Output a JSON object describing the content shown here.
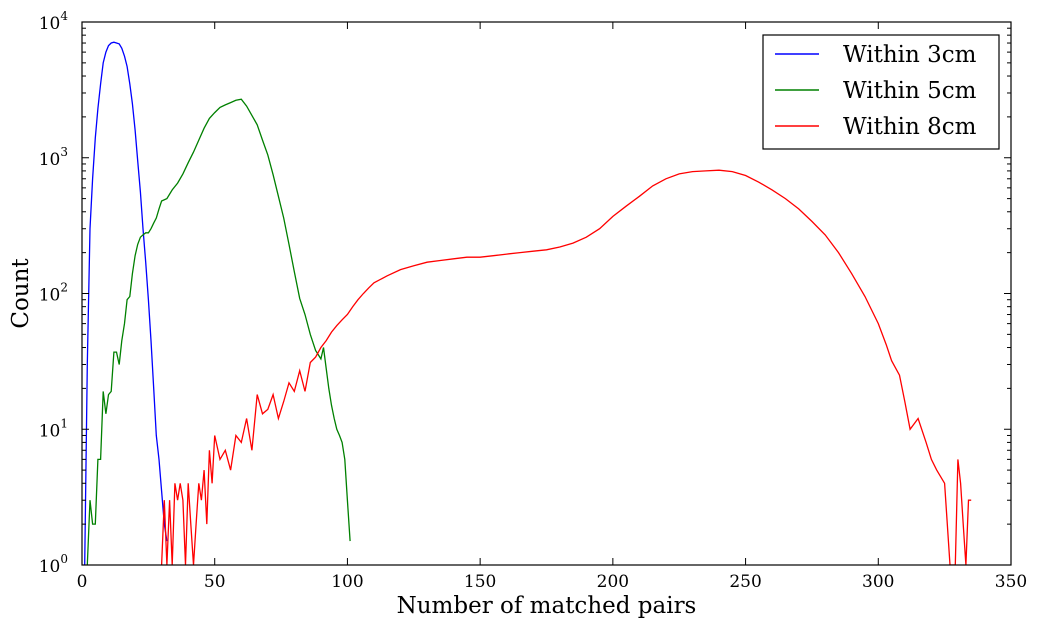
{
  "chart_data": {
    "type": "line",
    "xlabel": "Number of matched pairs",
    "ylabel": "Count",
    "xlim": [
      0,
      350
    ],
    "ylim": [
      1,
      10000
    ],
    "yscale": "log",
    "xticks": [
      0,
      50,
      100,
      150,
      200,
      250,
      300,
      350
    ],
    "yticks": [
      {
        "value": 1,
        "base": "10",
        "exp": "0"
      },
      {
        "value": 10,
        "base": "10",
        "exp": "1"
      },
      {
        "value": 100,
        "base": "10",
        "exp": "2"
      },
      {
        "value": 1000,
        "base": "10",
        "exp": "3"
      },
      {
        "value": 10000,
        "base": "10",
        "exp": "4"
      }
    ],
    "grid": false,
    "legend_position": "top-right",
    "series": [
      {
        "name": "Within 3cm",
        "color": "#0000ff",
        "x": [
          1,
          2,
          3,
          4,
          5,
          6,
          7,
          8,
          9,
          10,
          11,
          12,
          13,
          14,
          15,
          16,
          17,
          18,
          19,
          20,
          21,
          22,
          23,
          24,
          25,
          26,
          27,
          28,
          29,
          30,
          31,
          32
        ],
        "y": [
          1,
          30,
          300,
          700,
          1400,
          2300,
          3500,
          5000,
          6000,
          6700,
          7000,
          7100,
          7000,
          6900,
          6400,
          5600,
          4700,
          3500,
          2500,
          1600,
          950,
          560,
          300,
          170,
          90,
          45,
          20,
          9,
          6,
          3.5,
          2,
          1.5
        ]
      },
      {
        "name": "Within 5cm",
        "color": "#008000",
        "x": [
          2,
          3,
          4,
          5,
          6,
          7,
          8,
          9,
          10,
          11,
          12,
          13,
          14,
          15,
          16,
          17,
          18,
          19,
          20,
          21,
          22,
          23,
          24,
          25,
          26,
          27,
          28,
          29,
          30,
          32,
          34,
          36,
          38,
          40,
          42,
          44,
          46,
          48,
          50,
          52,
          54,
          56,
          58,
          60,
          62,
          64,
          66,
          68,
          70,
          72,
          74,
          76,
          78,
          80,
          82,
          84,
          86,
          88,
          90,
          91,
          92,
          93,
          94,
          95,
          96,
          97,
          98,
          99,
          100,
          101
        ],
        "y": [
          1,
          3,
          2,
          2,
          6,
          6,
          19,
          13,
          18,
          19,
          37,
          37,
          30,
          45,
          60,
          90,
          95,
          140,
          190,
          230,
          260,
          270,
          280,
          280,
          300,
          330,
          360,
          420,
          480,
          500,
          580,
          650,
          760,
          920,
          1100,
          1350,
          1650,
          1950,
          2150,
          2350,
          2450,
          2550,
          2650,
          2700,
          2400,
          2050,
          1750,
          1350,
          1050,
          750,
          520,
          360,
          230,
          145,
          92,
          70,
          50,
          38,
          33,
          40,
          28,
          20,
          15,
          12,
          10,
          9,
          8,
          6,
          3,
          1.5
        ]
      },
      {
        "name": "Within 8cm",
        "color": "#ff0000",
        "x": [
          30,
          31,
          32,
          33,
          34,
          35,
          36,
          37,
          38,
          39,
          40,
          41,
          42,
          43,
          44,
          45,
          46,
          47,
          48,
          49,
          50,
          52,
          54,
          56,
          58,
          60,
          62,
          64,
          66,
          68,
          70,
          72,
          74,
          76,
          78,
          80,
          82,
          84,
          86,
          88,
          90,
          92,
          94,
          96,
          98,
          100,
          102,
          104,
          106,
          108,
          110,
          115,
          120,
          125,
          130,
          135,
          140,
          145,
          150,
          155,
          160,
          165,
          170,
          175,
          180,
          185,
          190,
          195,
          200,
          205,
          210,
          215,
          220,
          225,
          230,
          235,
          240,
          245,
          250,
          255,
          260,
          265,
          270,
          275,
          280,
          285,
          290,
          295,
          300,
          303,
          305,
          308,
          310,
          312,
          315,
          318,
          320,
          322,
          325,
          327,
          328,
          329,
          330,
          331,
          332,
          333,
          334,
          335
        ],
        "y": [
          1,
          3,
          1,
          3,
          1,
          4,
          3,
          4,
          3,
          1,
          4,
          2,
          1,
          2,
          4,
          3,
          5,
          2,
          7,
          4,
          9,
          6,
          7,
          5,
          9,
          8,
          12,
          7,
          18,
          13,
          14,
          18,
          12,
          16,
          22,
          19,
          27,
          19,
          31,
          34,
          40,
          45,
          52,
          58,
          64,
          70,
          80,
          90,
          100,
          110,
          120,
          135,
          150,
          160,
          170,
          175,
          180,
          185,
          185,
          190,
          195,
          200,
          205,
          210,
          220,
          235,
          260,
          300,
          370,
          440,
          520,
          620,
          700,
          760,
          790,
          800,
          810,
          790,
          740,
          660,
          580,
          500,
          420,
          340,
          270,
          200,
          140,
          95,
          60,
          42,
          32,
          25,
          16,
          10,
          12,
          8,
          6,
          5,
          4,
          1,
          1,
          1,
          6,
          4,
          2,
          1,
          3,
          3
        ]
      }
    ]
  }
}
